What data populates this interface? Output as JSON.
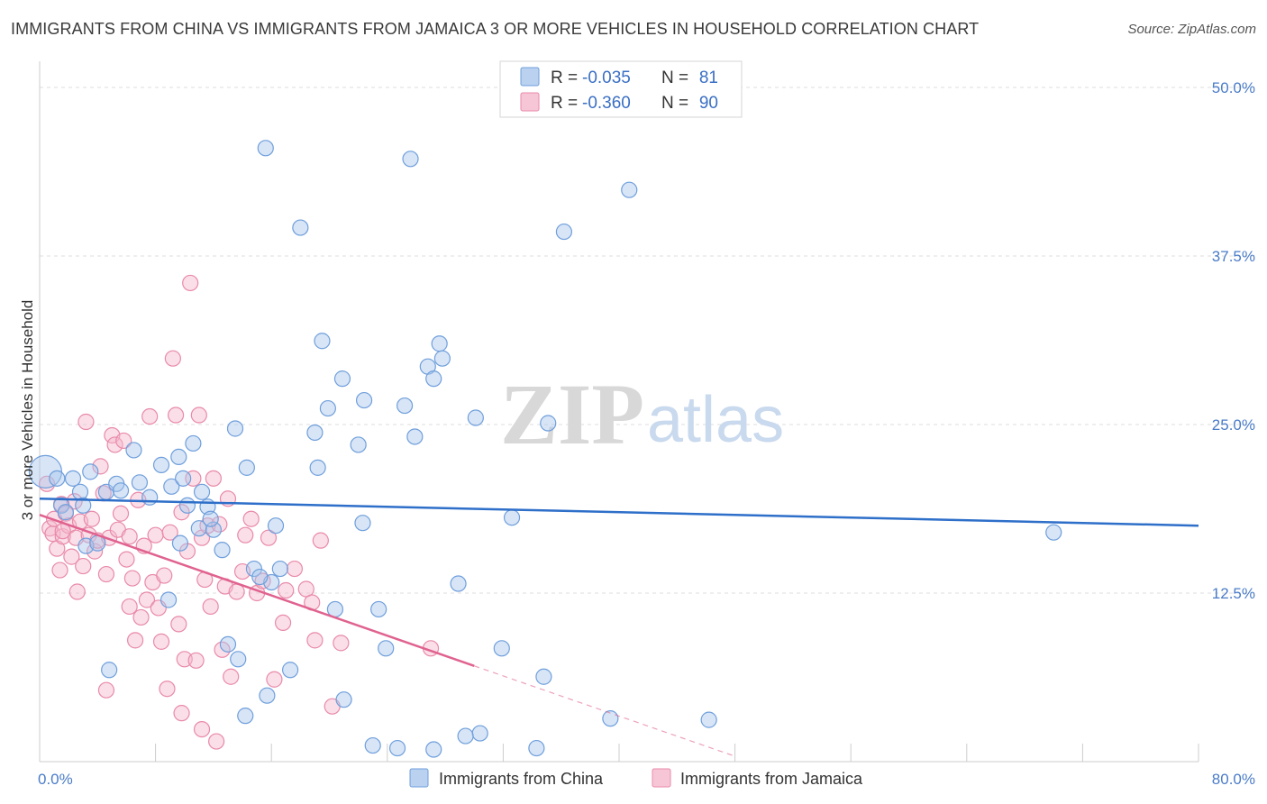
{
  "title": "IMMIGRANTS FROM CHINA VS IMMIGRANTS FROM JAMAICA 3 OR MORE VEHICLES IN HOUSEHOLD CORRELATION CHART",
  "source": "Source: ZipAtlas.com",
  "watermark": {
    "zip": "ZIP",
    "atlas": "atlas"
  },
  "legend_top": [
    {
      "r_label": "R =",
      "r_value": "-0.035",
      "n_label": "N =",
      "n_value": "81"
    },
    {
      "r_label": "R =",
      "r_value": "-0.360",
      "n_label": "N =",
      "n_value": "90"
    }
  ],
  "colors": {
    "china_fill": "#a9c6ec",
    "china_stroke": "#6f9fdc",
    "china_line": "#2e6fc9",
    "jamaica_fill": "#f5b8cc",
    "jamaica_stroke": "#e98aa9",
    "jamaica_line": "#e0628f",
    "grid": "#dddddd",
    "tick_text": "#4a7cc8"
  },
  "chart_data": {
    "type": "scatter",
    "title": "IMMIGRANTS FROM CHINA VS IMMIGRANTS FROM JAMAICA 3 OR MORE VEHICLES IN HOUSEHOLD CORRELATION CHART",
    "xlabel": "",
    "ylabel": "3 or more Vehicles in Household",
    "xlim": [
      0,
      80
    ],
    "ylim": [
      0,
      52.5
    ],
    "x_tick_labels": [
      {
        "value": 0,
        "label": "0.0%"
      },
      {
        "value": 80,
        "label": "80.0%"
      }
    ],
    "y_tick_labels": [
      {
        "value": 12.5,
        "label": "12.5%"
      },
      {
        "value": 25.0,
        "label": "25.0%"
      },
      {
        "value": 37.5,
        "label": "37.5%"
      },
      {
        "value": 50.0,
        "label": "50.0%"
      }
    ],
    "series": [
      {
        "name": "Immigrants from China",
        "R": -0.035,
        "N": 81,
        "trend": {
          "x": [
            0,
            80
          ],
          "y": [
            19.5,
            17.5
          ],
          "dashed_to": null
        },
        "points": [
          {
            "x": 0.4,
            "y": 21.5,
            "big": true
          },
          {
            "x": 1.2,
            "y": 21.0
          },
          {
            "x": 1.5,
            "y": 19.0
          },
          {
            "x": 1.8,
            "y": 18.5
          },
          {
            "x": 2.3,
            "y": 21.0
          },
          {
            "x": 2.8,
            "y": 20.0
          },
          {
            "x": 3.0,
            "y": 19.0
          },
          {
            "x": 3.5,
            "y": 21.5
          },
          {
            "x": 3.2,
            "y": 16.0
          },
          {
            "x": 4.0,
            "y": 16.2
          },
          {
            "x": 4.6,
            "y": 20.0
          },
          {
            "x": 5.3,
            "y": 20.6
          },
          {
            "x": 5.6,
            "y": 20.1
          },
          {
            "x": 6.5,
            "y": 23.1
          },
          {
            "x": 6.9,
            "y": 20.7
          },
          {
            "x": 7.6,
            "y": 19.6
          },
          {
            "x": 8.4,
            "y": 22.0
          },
          {
            "x": 9.1,
            "y": 20.4
          },
          {
            "x": 9.6,
            "y": 22.6
          },
          {
            "x": 9.9,
            "y": 21.0
          },
          {
            "x": 10.2,
            "y": 19.0
          },
          {
            "x": 10.6,
            "y": 23.6
          },
          {
            "x": 11.2,
            "y": 20.0
          },
          {
            "x": 11.6,
            "y": 18.9
          },
          {
            "x": 11.0,
            "y": 17.3
          },
          {
            "x": 12.0,
            "y": 17.2
          },
          {
            "x": 12.6,
            "y": 15.7
          },
          {
            "x": 13.5,
            "y": 24.7
          },
          {
            "x": 14.3,
            "y": 21.8
          },
          {
            "x": 14.8,
            "y": 14.3
          },
          {
            "x": 15.6,
            "y": 45.5
          },
          {
            "x": 16.0,
            "y": 13.3
          },
          {
            "x": 16.3,
            "y": 17.5
          },
          {
            "x": 16.6,
            "y": 14.3
          },
          {
            "x": 18.0,
            "y": 39.6
          },
          {
            "x": 19.0,
            "y": 24.4
          },
          {
            "x": 19.2,
            "y": 21.8
          },
          {
            "x": 19.5,
            "y": 31.2
          },
          {
            "x": 19.9,
            "y": 26.2
          },
          {
            "x": 20.4,
            "y": 11.3
          },
          {
            "x": 20.9,
            "y": 28.4
          },
          {
            "x": 22.0,
            "y": 23.5
          },
          {
            "x": 22.4,
            "y": 26.8
          },
          {
            "x": 22.3,
            "y": 17.7
          },
          {
            "x": 23.4,
            "y": 11.3
          },
          {
            "x": 23.9,
            "y": 8.4
          },
          {
            "x": 25.2,
            "y": 26.4
          },
          {
            "x": 25.6,
            "y": 44.7
          },
          {
            "x": 25.9,
            "y": 24.1
          },
          {
            "x": 26.8,
            "y": 29.3
          },
          {
            "x": 27.2,
            "y": 28.4
          },
          {
            "x": 27.6,
            "y": 31.0
          },
          {
            "x": 27.8,
            "y": 29.9
          },
          {
            "x": 28.9,
            "y": 13.2
          },
          {
            "x": 30.1,
            "y": 25.5
          },
          {
            "x": 31.9,
            "y": 8.4
          },
          {
            "x": 32.6,
            "y": 18.1
          },
          {
            "x": 34.8,
            "y": 6.3
          },
          {
            "x": 35.1,
            "y": 25.1
          },
          {
            "x": 36.2,
            "y": 39.3
          },
          {
            "x": 40.7,
            "y": 42.4
          },
          {
            "x": 34.3,
            "y": 1.0
          },
          {
            "x": 30.4,
            "y": 2.1
          },
          {
            "x": 29.4,
            "y": 1.9
          },
          {
            "x": 27.2,
            "y": 0.9
          },
          {
            "x": 24.7,
            "y": 1.0
          },
          {
            "x": 23.0,
            "y": 1.2
          },
          {
            "x": 21.0,
            "y": 4.6
          },
          {
            "x": 17.3,
            "y": 6.8
          },
          {
            "x": 13.0,
            "y": 8.7
          },
          {
            "x": 13.7,
            "y": 7.6
          },
          {
            "x": 14.2,
            "y": 3.4
          },
          {
            "x": 15.7,
            "y": 4.9
          },
          {
            "x": 4.8,
            "y": 6.8
          },
          {
            "x": 8.9,
            "y": 12.0
          },
          {
            "x": 15.2,
            "y": 13.7
          },
          {
            "x": 11.8,
            "y": 18.0
          },
          {
            "x": 9.7,
            "y": 16.2
          },
          {
            "x": 39.4,
            "y": 3.2
          },
          {
            "x": 46.2,
            "y": 3.1
          },
          {
            "x": 70.0,
            "y": 17.0
          }
        ]
      },
      {
        "name": "Immigrants from Jamaica",
        "R": -0.36,
        "N": 90,
        "trend": {
          "x": [
            0,
            30
          ],
          "y": [
            18.3,
            7.1
          ],
          "dashed_to": {
            "x": 48,
            "y": 0.4
          }
        },
        "points": [
          {
            "x": 0.5,
            "y": 20.6
          },
          {
            "x": 0.7,
            "y": 17.3
          },
          {
            "x": 0.9,
            "y": 16.9
          },
          {
            "x": 1.0,
            "y": 18.0
          },
          {
            "x": 1.2,
            "y": 15.8
          },
          {
            "x": 1.4,
            "y": 14.2
          },
          {
            "x": 1.5,
            "y": 19.1
          },
          {
            "x": 1.6,
            "y": 16.7
          },
          {
            "x": 1.8,
            "y": 18.4
          },
          {
            "x": 2.0,
            "y": 17.5
          },
          {
            "x": 2.2,
            "y": 15.2
          },
          {
            "x": 2.4,
            "y": 19.3
          },
          {
            "x": 2.5,
            "y": 16.6
          },
          {
            "x": 2.6,
            "y": 12.6
          },
          {
            "x": 2.8,
            "y": 17.8
          },
          {
            "x": 3.0,
            "y": 14.5
          },
          {
            "x": 3.2,
            "y": 25.2
          },
          {
            "x": 3.4,
            "y": 16.8
          },
          {
            "x": 3.6,
            "y": 18.0
          },
          {
            "x": 3.8,
            "y": 15.6
          },
          {
            "x": 4.0,
            "y": 16.4
          },
          {
            "x": 4.2,
            "y": 21.9
          },
          {
            "x": 4.4,
            "y": 19.9
          },
          {
            "x": 4.6,
            "y": 13.9
          },
          {
            "x": 4.8,
            "y": 16.6
          },
          {
            "x": 5.0,
            "y": 24.2
          },
          {
            "x": 5.2,
            "y": 23.5
          },
          {
            "x": 5.4,
            "y": 17.2
          },
          {
            "x": 5.6,
            "y": 18.4
          },
          {
            "x": 5.8,
            "y": 23.8
          },
          {
            "x": 6.0,
            "y": 15.0
          },
          {
            "x": 6.2,
            "y": 11.5
          },
          {
            "x": 6.4,
            "y": 13.6
          },
          {
            "x": 6.6,
            "y": 9.0
          },
          {
            "x": 6.8,
            "y": 19.4
          },
          {
            "x": 7.0,
            "y": 10.7
          },
          {
            "x": 7.2,
            "y": 16.0
          },
          {
            "x": 7.4,
            "y": 12.0
          },
          {
            "x": 7.6,
            "y": 25.6
          },
          {
            "x": 7.8,
            "y": 13.3
          },
          {
            "x": 8.0,
            "y": 16.8
          },
          {
            "x": 8.2,
            "y": 11.4
          },
          {
            "x": 8.4,
            "y": 8.9
          },
          {
            "x": 8.6,
            "y": 13.8
          },
          {
            "x": 8.8,
            "y": 5.4
          },
          {
            "x": 9.0,
            "y": 17.0
          },
          {
            "x": 9.2,
            "y": 29.9
          },
          {
            "x": 9.4,
            "y": 25.7
          },
          {
            "x": 9.6,
            "y": 10.2
          },
          {
            "x": 9.8,
            "y": 18.5
          },
          {
            "x": 10.0,
            "y": 7.6
          },
          {
            "x": 10.2,
            "y": 15.6
          },
          {
            "x": 10.4,
            "y": 35.5
          },
          {
            "x": 10.6,
            "y": 21.0
          },
          {
            "x": 10.8,
            "y": 7.5
          },
          {
            "x": 11.0,
            "y": 25.7
          },
          {
            "x": 11.2,
            "y": 16.6
          },
          {
            "x": 11.4,
            "y": 13.5
          },
          {
            "x": 11.6,
            "y": 17.5
          },
          {
            "x": 11.8,
            "y": 11.5
          },
          {
            "x": 12.0,
            "y": 21.0
          },
          {
            "x": 12.2,
            "y": 1.5
          },
          {
            "x": 12.4,
            "y": 17.6
          },
          {
            "x": 12.6,
            "y": 8.3
          },
          {
            "x": 12.8,
            "y": 13.0
          },
          {
            "x": 13.0,
            "y": 19.5
          },
          {
            "x": 13.2,
            "y": 6.3
          },
          {
            "x": 13.6,
            "y": 12.6
          },
          {
            "x": 14.0,
            "y": 14.1
          },
          {
            "x": 14.2,
            "y": 16.8
          },
          {
            "x": 14.6,
            "y": 18.0
          },
          {
            "x": 15.0,
            "y": 12.5
          },
          {
            "x": 15.4,
            "y": 13.4
          },
          {
            "x": 15.8,
            "y": 16.6
          },
          {
            "x": 16.2,
            "y": 6.1
          },
          {
            "x": 16.8,
            "y": 10.3
          },
          {
            "x": 17.0,
            "y": 12.7
          },
          {
            "x": 17.6,
            "y": 14.3
          },
          {
            "x": 18.4,
            "y": 12.8
          },
          {
            "x": 18.8,
            "y": 11.8
          },
          {
            "x": 19.0,
            "y": 9.0
          },
          {
            "x": 19.4,
            "y": 16.4
          },
          {
            "x": 20.2,
            "y": 4.1
          },
          {
            "x": 20.8,
            "y": 8.8
          },
          {
            "x": 27.0,
            "y": 8.4
          },
          {
            "x": 11.2,
            "y": 2.4
          },
          {
            "x": 9.8,
            "y": 3.6
          },
          {
            "x": 4.6,
            "y": 5.3
          },
          {
            "x": 1.6,
            "y": 17.1
          },
          {
            "x": 6.2,
            "y": 16.7
          }
        ]
      }
    ]
  },
  "bottom_legend": [
    "Immigrants from China",
    "Immigrants from Jamaica"
  ]
}
